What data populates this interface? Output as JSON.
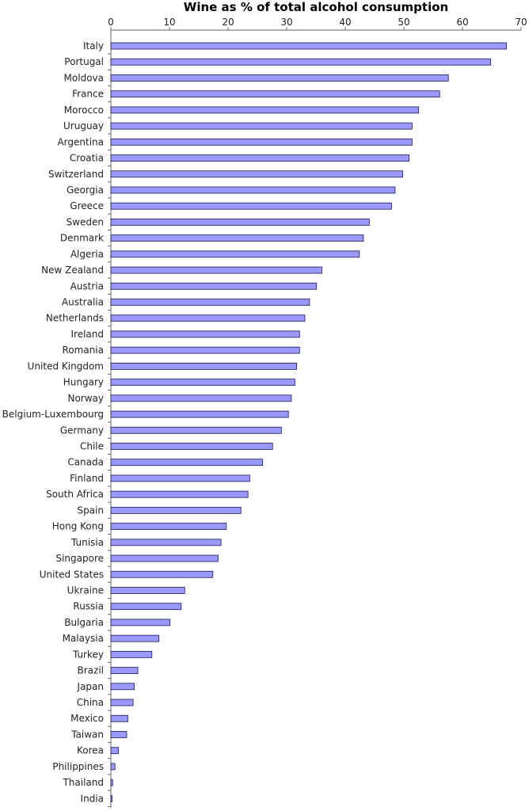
{
  "chart_data": {
    "type": "bar",
    "orientation": "horizontal",
    "title": "Wine as % of total alcohol consumption",
    "xlabel": "",
    "ylabel": "",
    "xlim": [
      0,
      70
    ],
    "x_ticks": [
      0,
      10,
      20,
      30,
      40,
      50,
      60,
      70
    ],
    "x_axis_position": "top",
    "grid": false,
    "legend": "none",
    "bar_color": "#9999ff",
    "bar_edge_color": "#1a1a4d",
    "categories": [
      "Italy",
      "Portugal",
      "Moldova",
      "France",
      "Morocco",
      "Uruguay",
      "Argentina",
      "Croatia",
      "Switzerland",
      "Georgia",
      "Greece",
      "Sweden",
      "Denmark",
      "Algeria",
      "New Zealand",
      "Austria",
      "Australia",
      "Netherlands",
      "Ireland",
      "Romania",
      "United Kingdom",
      "Hungary",
      "Norway",
      "Belgium-Luxembourg",
      "Germany",
      "Chile",
      "Canada",
      "Finland",
      "South Africa",
      "Spain",
      "Hong Kong",
      "Tunisia",
      "Singapore",
      "United States",
      "Ukraine",
      "Russia",
      "Bulgaria",
      "Malaysia",
      "Turkey",
      "Brazil",
      "Japan",
      "China",
      "Mexico",
      "Taiwan",
      "Korea",
      "Philippines",
      "Thailand",
      "India"
    ],
    "values": [
      67.5,
      64.8,
      57.6,
      56.1,
      52.5,
      51.4,
      51.4,
      50.9,
      49.8,
      48.5,
      47.9,
      44.1,
      43.1,
      42.4,
      36.0,
      35.1,
      33.9,
      33.1,
      32.2,
      32.2,
      31.7,
      31.4,
      30.8,
      30.3,
      29.1,
      27.6,
      25.9,
      23.7,
      23.4,
      22.2,
      19.7,
      18.8,
      18.3,
      17.4,
      12.6,
      12.0,
      10.1,
      8.2,
      7.0,
      4.6,
      4.0,
      3.8,
      2.9,
      2.7,
      1.3,
      0.7,
      0.3,
      0.2
    ]
  }
}
